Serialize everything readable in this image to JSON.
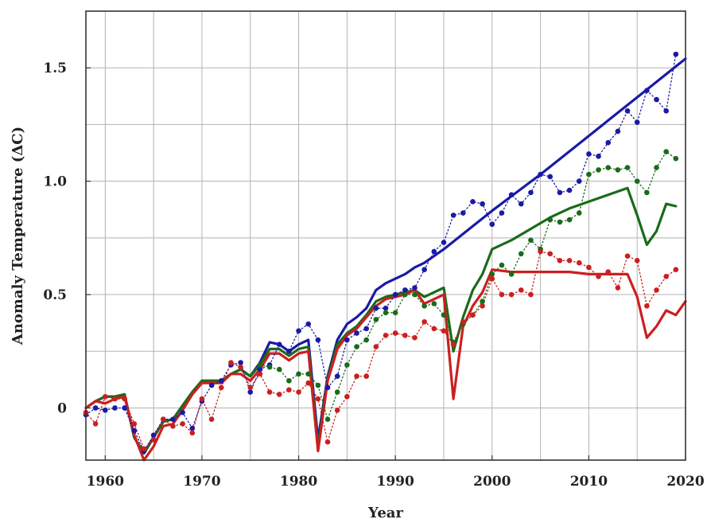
{
  "chart_data": {
    "type": "line",
    "xlabel": "Year",
    "ylabel": "Anomaly Temperature (ΔC)",
    "xlim": [
      1958,
      2020
    ],
    "ylim": [
      -0.23,
      1.75
    ],
    "x_ticks": [
      1960,
      1970,
      1980,
      1990,
      2000,
      2010,
      2020
    ],
    "x_tick_labels": [
      "1960",
      "1970",
      "1980",
      "1990",
      "2000",
      "2010",
      "2020"
    ],
    "y_ticks": [
      0,
      0.5,
      1.0,
      1.5
    ],
    "y_tick_labels": [
      "0",
      "0.5",
      "1.0",
      "1.5"
    ],
    "x_grid_step": 5,
    "y_grid_step": 0.25,
    "grid": true,
    "legend": "none",
    "series": [
      {
        "color": "#1a1aa6",
        "style": "solid",
        "x": [
          1958,
          1959,
          1960,
          1961,
          1962,
          1963,
          1964,
          1965,
          1966,
          1967,
          1968,
          1969,
          1970,
          1971,
          1972,
          1973,
          1974,
          1975,
          1976,
          1977,
          1978,
          1979,
          1980,
          1981,
          1982,
          1983,
          1984,
          1985,
          1986,
          1987,
          1988,
          1989,
          1990,
          1991,
          1992,
          1993,
          1994,
          1995,
          2000,
          2005,
          2010,
          2015,
          2020
        ],
        "y": [
          0.0,
          0.03,
          0.05,
          0.05,
          0.06,
          -0.13,
          -0.2,
          -0.13,
          -0.06,
          -0.05,
          0.01,
          0.07,
          0.12,
          0.12,
          0.12,
          0.15,
          0.17,
          0.14,
          0.2,
          0.29,
          0.28,
          0.25,
          0.28,
          0.3,
          -0.14,
          0.14,
          0.3,
          0.37,
          0.4,
          0.44,
          0.52,
          0.55,
          0.57,
          0.59,
          0.62,
          0.64,
          0.67,
          0.7,
          0.87,
          1.03,
          1.2,
          1.37,
          1.54
        ]
      },
      {
        "color": "#1a6b1a",
        "style": "solid",
        "x": [
          1958,
          1959,
          1960,
          1961,
          1962,
          1963,
          1964,
          1965,
          1966,
          1967,
          1968,
          1969,
          1970,
          1971,
          1972,
          1973,
          1974,
          1975,
          1976,
          1977,
          1978,
          1979,
          1980,
          1981,
          1982,
          1983,
          1984,
          1985,
          1986,
          1987,
          1988,
          1989,
          1990,
          1991,
          1992,
          1993,
          1994,
          1995,
          1996,
          1997,
          1998,
          1999,
          2000,
          2002,
          2004,
          2006,
          2008,
          2010,
          2012,
          2014,
          2015,
          2016,
          2017,
          2018,
          2019
        ],
        "y": [
          0.0,
          0.03,
          0.05,
          0.05,
          0.06,
          -0.13,
          -0.2,
          -0.13,
          -0.06,
          -0.05,
          0.01,
          0.07,
          0.12,
          0.12,
          0.12,
          0.15,
          0.17,
          0.14,
          0.19,
          0.26,
          0.26,
          0.23,
          0.26,
          0.27,
          -0.17,
          0.13,
          0.28,
          0.33,
          0.36,
          0.41,
          0.47,
          0.49,
          0.5,
          0.51,
          0.52,
          0.49,
          0.51,
          0.53,
          0.25,
          0.4,
          0.52,
          0.59,
          0.7,
          0.74,
          0.79,
          0.84,
          0.88,
          0.91,
          0.94,
          0.97,
          0.85,
          0.72,
          0.78,
          0.9,
          0.89
        ]
      },
      {
        "color": "#cc1f1f",
        "style": "solid",
        "x": [
          1958,
          1959,
          1960,
          1961,
          1962,
          1963,
          1964,
          1965,
          1966,
          1967,
          1968,
          1969,
          1970,
          1971,
          1972,
          1973,
          1974,
          1975,
          1976,
          1977,
          1978,
          1979,
          1980,
          1981,
          1982,
          1983,
          1984,
          1985,
          1986,
          1987,
          1988,
          1989,
          1990,
          1991,
          1992,
          1993,
          1994,
          1995,
          1996,
          1997,
          1998,
          1999,
          2000,
          2002,
          2004,
          2006,
          2008,
          2010,
          2012,
          2014,
          2015,
          2016,
          2017,
          2018,
          2019,
          2020
        ],
        "y": [
          0.0,
          0.03,
          0.02,
          0.04,
          0.05,
          -0.12,
          -0.23,
          -0.17,
          -0.08,
          -0.07,
          -0.01,
          0.06,
          0.11,
          0.11,
          0.11,
          0.15,
          0.15,
          0.12,
          0.17,
          0.24,
          0.24,
          0.21,
          0.24,
          0.25,
          -0.19,
          0.12,
          0.26,
          0.32,
          0.35,
          0.4,
          0.45,
          0.48,
          0.49,
          0.5,
          0.52,
          0.46,
          0.48,
          0.5,
          0.04,
          0.36,
          0.45,
          0.51,
          0.61,
          0.6,
          0.6,
          0.6,
          0.6,
          0.59,
          0.59,
          0.59,
          0.49,
          0.31,
          0.36,
          0.43,
          0.41,
          0.47
        ]
      },
      {
        "color": "#1a1aa6",
        "style": "dotted-markers",
        "x": [
          1958,
          1959,
          1960,
          1961,
          1962,
          1963,
          1964,
          1965,
          1966,
          1967,
          1968,
          1969,
          1970,
          1971,
          1972,
          1973,
          1974,
          1975,
          1976,
          1977,
          1978,
          1979,
          1980,
          1981,
          1982,
          1983,
          1984,
          1985,
          1986,
          1987,
          1988,
          1989,
          1990,
          1991,
          1992,
          1993,
          1994,
          1995,
          1996,
          1997,
          1998,
          1999,
          2000,
          2001,
          2002,
          2003,
          2004,
          2005,
          2006,
          2007,
          2008,
          2009,
          2010,
          2011,
          2012,
          2013,
          2014,
          2015,
          2016,
          2017,
          2018,
          2019
        ],
        "y": [
          -0.03,
          0.0,
          -0.01,
          0.0,
          0.0,
          -0.1,
          -0.19,
          -0.12,
          -0.05,
          -0.05,
          -0.02,
          -0.09,
          0.03,
          0.1,
          0.12,
          0.19,
          0.2,
          0.07,
          0.17,
          0.19,
          0.28,
          0.25,
          0.34,
          0.37,
          0.3,
          0.09,
          0.14,
          0.3,
          0.33,
          0.35,
          0.44,
          0.44,
          0.5,
          0.52,
          0.53,
          0.61,
          0.69,
          0.73,
          0.85,
          0.86,
          0.91,
          0.9,
          0.81,
          0.86,
          0.94,
          0.9,
          0.95,
          1.03,
          1.02,
          0.95,
          0.96,
          1.0,
          1.12,
          1.11,
          1.17,
          1.22,
          1.31,
          1.26,
          1.4,
          1.36,
          1.31,
          1.56
        ]
      },
      {
        "color": "#1a6b1a",
        "style": "dotted-markers",
        "x": [
          1976,
          1977,
          1978,
          1979,
          1980,
          1981,
          1982,
          1983,
          1984,
          1985,
          1986,
          1987,
          1988,
          1989,
          1990,
          1991,
          1992,
          1993,
          1994,
          1995,
          1996,
          1997,
          1998,
          1999,
          2000,
          2001,
          2002,
          2003,
          2004,
          2005,
          2006,
          2007,
          2008,
          2009,
          2010,
          2011,
          2012,
          2013,
          2014,
          2015,
          2016,
          2017,
          2018,
          2019
        ],
        "y": [
          0.19,
          0.18,
          0.17,
          0.12,
          0.15,
          0.15,
          0.1,
          -0.05,
          0.07,
          0.19,
          0.27,
          0.3,
          0.39,
          0.42,
          0.42,
          0.5,
          0.5,
          0.45,
          0.46,
          0.41,
          0.29,
          0.37,
          0.41,
          0.47,
          0.59,
          0.63,
          0.59,
          0.68,
          0.74,
          0.7,
          0.83,
          0.82,
          0.83,
          0.86,
          1.03,
          1.05,
          1.06,
          1.05,
          1.06,
          1.0,
          0.95,
          1.06,
          1.13,
          1.1
        ]
      },
      {
        "color": "#cc1f1f",
        "style": "dotted-markers",
        "x": [
          1958,
          1959,
          1960,
          1961,
          1962,
          1963,
          1964,
          1965,
          1966,
          1967,
          1968,
          1969,
          1970,
          1971,
          1972,
          1973,
          1974,
          1975,
          1976,
          1977,
          1978,
          1979,
          1980,
          1981,
          1982,
          1983,
          1984,
          1985,
          1986,
          1987,
          1988,
          1989,
          1990,
          1991,
          1992,
          1993,
          1994,
          1995,
          1996,
          1997,
          1998,
          1999,
          2000,
          2001,
          2002,
          2003,
          2004,
          2005,
          2006,
          2007,
          2008,
          2009,
          2010,
          2011,
          2012,
          2013,
          2014,
          2015,
          2016,
          2017,
          2018,
          2019
        ],
        "y": [
          -0.02,
          -0.07,
          0.05,
          0.04,
          0.04,
          -0.07,
          -0.18,
          -0.14,
          -0.05,
          -0.08,
          -0.07,
          -0.11,
          0.04,
          -0.05,
          0.09,
          0.2,
          0.18,
          0.09,
          0.15,
          0.07,
          0.06,
          0.08,
          0.07,
          0.11,
          0.04,
          -0.15,
          -0.01,
          0.05,
          0.14,
          0.14,
          0.27,
          0.32,
          0.33,
          0.32,
          0.31,
          0.38,
          0.35,
          0.34,
          0.28,
          0.38,
          0.41,
          0.45,
          0.57,
          0.5,
          0.5,
          0.52,
          0.5,
          0.69,
          0.68,
          0.65,
          0.65,
          0.64,
          0.62,
          0.58,
          0.6,
          0.53,
          0.67,
          0.65,
          0.45,
          0.52,
          0.58,
          0.61
        ]
      }
    ]
  }
}
